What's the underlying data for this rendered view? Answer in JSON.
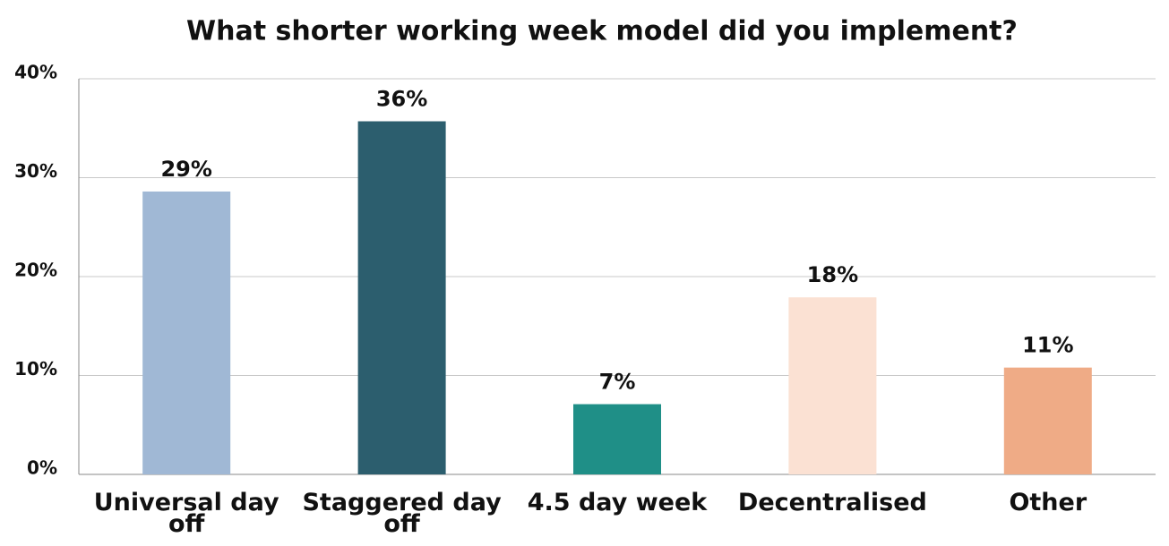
{
  "chart_data": {
    "type": "bar",
    "title": "What shorter working week model did you implement?",
    "categories": [
      "Universal day off",
      "Staggered day off",
      "4.5 day week",
      "Decentralised",
      "Other"
    ],
    "values": [
      28.6,
      35.7,
      7.1,
      17.9,
      10.8
    ],
    "value_labels": [
      "29%",
      "36%",
      "7%",
      "18%",
      "11%"
    ],
    "colors": [
      "#a0b8d5",
      "#2c5e6e",
      "#1f8f87",
      "#fbe1d3",
      "#efab86"
    ],
    "ylim": [
      0,
      40
    ],
    "yticks": [
      {
        "value": 0,
        "label": "0%"
      },
      {
        "value": 10,
        "label": "10%"
      },
      {
        "value": 20,
        "label": "20%"
      },
      {
        "value": 30,
        "label": "30%"
      },
      {
        "value": 40,
        "label": "40%"
      }
    ],
    "grid": true
  }
}
